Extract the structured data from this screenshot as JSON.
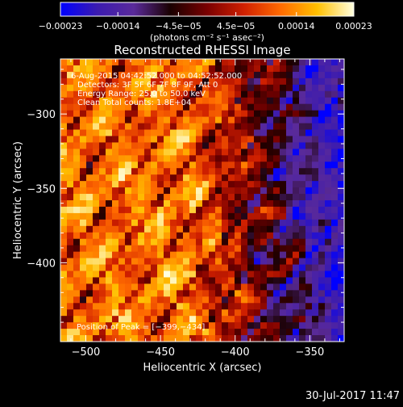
{
  "chart_data": {
    "type": "heatmap",
    "title": "Reconstructed RHESSI Image",
    "xlabel": "Heliocentric X (arcsec)",
    "ylabel": "Heliocentric Y (arcsec)",
    "xlim": [
      -517,
      -327
    ],
    "ylim": [
      -453,
      -263
    ],
    "x_ticks": [
      -500,
      -450,
      -400,
      -350
    ],
    "x_tick_labels": [
      "−500",
      "−450",
      "−400",
      "−350"
    ],
    "y_ticks": [
      -300,
      -350,
      -400
    ],
    "y_tick_labels": [
      "−300",
      "−350",
      "−400"
    ],
    "colorbar": {
      "min": -0.00023,
      "max": 0.00023,
      "ticks": [
        -0.00023,
        -0.00014,
        -4.5e-05,
        4.5e-05,
        0.00014,
        0.00023
      ],
      "tick_labels": [
        "−0.00023",
        "−0.00014",
        "−4.5e−05",
        "4.5e−05",
        "0.00014",
        "0.00023"
      ],
      "unit_label": "(photons cm⁻² s⁻¹ asec⁻²)"
    },
    "annotations": [
      " 6-Aug-2015 04:42:52.000 to 04:52:52.000",
      "Detectors: 3F 5F 6F 7F 8F 9F, Att 0",
      "Energy Range: 25.0 to 50.0 keV",
      "Clean     Total counts: 1.8E+04"
    ],
    "peak_label": "Position of Peak = [−399,−434]",
    "peak": [
      -399,
      -434
    ],
    "grid": false,
    "colors": {
      "colormap": [
        "#0000ff",
        "#3b1bb0",
        "#5a2a9a",
        "#1a0000",
        "#7a0000",
        "#d02000",
        "#ff6a00",
        "#ffc000",
        "#ffffe0"
      ],
      "background": "#000000",
      "text": "#ffffff"
    }
  },
  "footer": {
    "timestamp": "30-Jul-2017 11:47"
  }
}
